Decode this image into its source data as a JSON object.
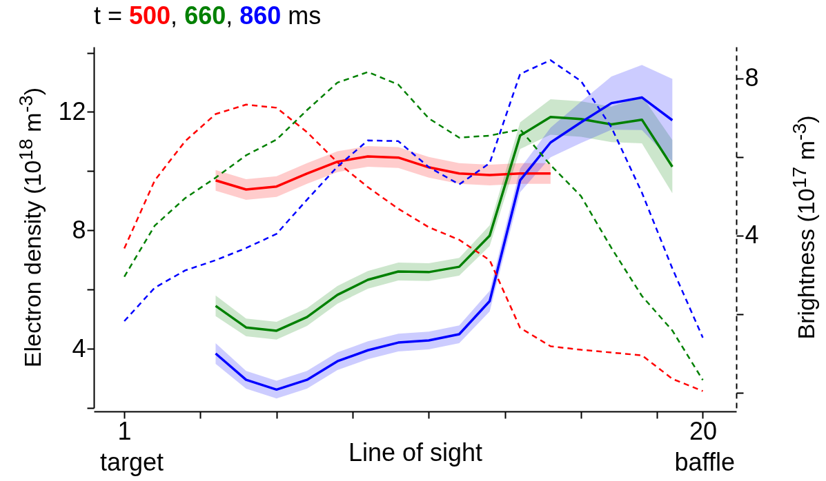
{
  "chart_data": {
    "type": "line",
    "title": "t = 500, 660, 860 ms",
    "xlabel": "Line of sight",
    "ylabel": "Electron density (10$^{18}$ m$^{-3}$)",
    "y2label": "Brightness (10$^{17}$ m$^{-3}$)",
    "xlim": [
      0,
      21.1
    ],
    "xticks": [
      1,
      {
        "value": 3.5,
        "label": null
      },
      {
        "value": 6,
        "label": null
      },
      {
        "value": 8.5,
        "label": null
      },
      {
        "value": 11,
        "label": null
      },
      {
        "value": 13.5,
        "label": null
      },
      {
        "value": 16,
        "label": null
      },
      {
        "value": 18.5,
        "label": null
      },
      20
    ],
    "ylim": [
      2,
      14.2
    ],
    "yticks": [
      {
        "value": 2,
        "label": null
      },
      4,
      {
        "value": 6,
        "label": null
      },
      8,
      {
        "value": 10,
        "label": null
      },
      12,
      {
        "value": 14,
        "label": null
      }
    ],
    "y2lim": [
      -0.39,
      8.8
    ],
    "y2ticks": [
      {
        "value": 0,
        "label": null
      },
      {
        "value": 2,
        "label": null
      },
      4,
      {
        "value": 6,
        "label": null
      },
      8
    ],
    "grid": false,
    "marker": "none",
    "annotations": [
      "target",
      "baffle"
    ],
    "series": [
      {
        "color": "#ff0000",
        "line_style": "solid",
        "x": [
          4,
          5,
          6,
          7,
          8,
          9,
          10,
          11,
          12,
          13,
          14,
          15
        ],
        "values": [
          9.69,
          9.38,
          9.48,
          9.92,
          10.32,
          10.5,
          10.46,
          10.13,
          9.92,
          9.87,
          9.92,
          9.92
        ],
        "lower": [
          9.34,
          9.03,
          9.13,
          9.57,
          9.97,
          10.15,
          10.11,
          9.78,
          9.57,
          9.52,
          9.57,
          9.57
        ],
        "upper": [
          10.04,
          9.73,
          9.83,
          10.27,
          10.67,
          10.85,
          10.81,
          10.48,
          10.27,
          10.22,
          10.27,
          10.27
        ]
      },
      {
        "color": "#008000",
        "line_style": "solid",
        "x": [
          4,
          5,
          6,
          7,
          8,
          9,
          10,
          11,
          12,
          13,
          14,
          15,
          16,
          17,
          18,
          19
        ],
        "values": [
          5.45,
          4.72,
          4.61,
          5.07,
          5.82,
          6.33,
          6.61,
          6.59,
          6.77,
          7.82,
          11.2,
          11.83,
          11.76,
          11.58,
          11.74,
          10.15
        ],
        "lower": [
          5.1,
          4.42,
          4.31,
          4.77,
          5.52,
          6.03,
          6.31,
          6.29,
          6.47,
          7.47,
          10.75,
          11.23,
          11.16,
          10.98,
          10.94,
          9.25
        ],
        "upper": [
          5.8,
          5.02,
          4.91,
          5.37,
          6.12,
          6.63,
          6.91,
          6.89,
          7.07,
          8.17,
          11.65,
          12.43,
          12.36,
          12.18,
          12.54,
          11.05
        ]
      },
      {
        "color": "#0000ff",
        "line_style": "solid",
        "x": [
          4,
          5,
          6,
          7,
          8,
          9,
          10,
          11,
          12,
          13,
          14,
          15,
          16,
          17,
          18,
          19
        ],
        "values": [
          3.84,
          2.95,
          2.62,
          2.95,
          3.58,
          3.95,
          4.21,
          4.28,
          4.49,
          5.61,
          9.69,
          10.97,
          11.65,
          12.3,
          12.49,
          11.72
        ],
        "lower": [
          3.49,
          2.65,
          2.32,
          2.65,
          3.28,
          3.65,
          3.91,
          3.98,
          4.19,
          5.26,
          9.29,
          10.47,
          10.95,
          11.4,
          11.39,
          10.32
        ],
        "upper": [
          4.19,
          3.25,
          2.92,
          3.25,
          3.88,
          4.25,
          4.51,
          4.58,
          4.79,
          5.96,
          10.09,
          11.47,
          12.35,
          13.2,
          13.59,
          13.12
        ]
      },
      {
        "color": "#ff0000",
        "line_style": "dashed",
        "axis": "y2",
        "x": [
          1,
          2,
          3,
          4,
          5,
          6,
          7,
          8,
          9,
          10,
          11,
          12,
          13,
          14,
          15,
          16,
          17,
          18,
          19,
          20
        ],
        "values": [
          3.67,
          5.4,
          6.4,
          7.09,
          7.33,
          7.25,
          6.63,
          5.86,
          5.23,
          4.68,
          4.21,
          3.89,
          3.37,
          1.65,
          1.18,
          1.09,
          1.02,
          0.95,
          0.35,
          0.04
        ]
      },
      {
        "color": "#008000",
        "line_style": "dashed",
        "axis": "y2",
        "x": [
          1,
          2,
          3,
          4,
          5,
          6,
          7,
          8,
          9,
          10,
          11,
          12,
          13,
          14,
          15,
          16,
          17,
          18,
          19,
          20
        ],
        "values": [
          2.95,
          4.25,
          4.95,
          5.47,
          6.04,
          6.44,
          7.19,
          7.89,
          8.16,
          7.84,
          6.98,
          6.49,
          6.54,
          6.7,
          5.79,
          5.0,
          3.68,
          2.46,
          1.58,
          0.32
        ]
      },
      {
        "color": "#0000ff",
        "line_style": "dashed",
        "axis": "y2",
        "x": [
          1,
          2,
          3,
          4,
          5,
          6,
          7,
          8,
          9,
          10,
          11,
          12,
          13,
          14,
          15,
          16,
          17,
          18,
          19,
          20
        ],
        "values": [
          1.82,
          2.67,
          3.11,
          3.37,
          3.68,
          4.04,
          4.91,
          5.75,
          6.42,
          6.4,
          5.74,
          5.3,
          5.84,
          8.11,
          8.46,
          7.93,
          6.75,
          5.09,
          3.16,
          1.4
        ]
      }
    ]
  }
}
